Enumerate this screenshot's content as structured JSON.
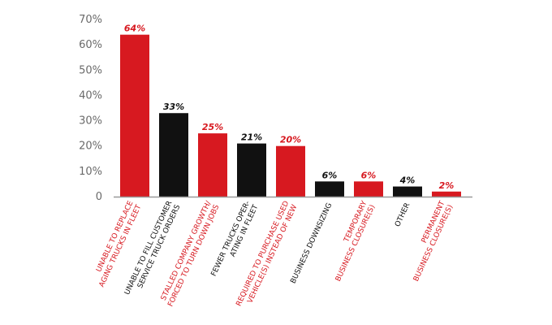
{
  "chart_data": {
    "type": "bar",
    "title": "",
    "xlabel": "",
    "ylabel": "",
    "ylim": [
      0,
      70
    ],
    "yticks": [
      "0",
      "10%",
      "20%",
      "30%",
      "40%",
      "50%",
      "60%",
      "70%"
    ],
    "grid": false,
    "legend": "none",
    "categories": [
      [
        "UNABLE TO REPLACE",
        "AGING TRUCKS IN FLEET"
      ],
      [
        "UNABLE TO FILL CUSTOMER",
        "SERVICE TRUCK ORDERS"
      ],
      [
        "STALLED COMPANY GROWTH/",
        "FORCED TO TURN DOWN JOBS"
      ],
      [
        "FEWER TRUCKS OPER-",
        "ATING IN FLEET"
      ],
      [
        "REQUIRED TO PURCHASE USED",
        "VEHICLE(S) INSTEAD OF NEW"
      ],
      [
        "BUSINESS DOWNSIZING"
      ],
      [
        "TEMPORARY",
        "BUSINESS CLOSURE(S)"
      ],
      [
        "OTHER"
      ],
      [
        "PERMANENT",
        "BUSINESS CLOSURE(S)"
      ]
    ],
    "values": [
      64,
      33,
      25,
      21,
      20,
      6,
      6,
      4,
      2
    ],
    "value_labels": [
      "64%",
      "33%",
      "25%",
      "21%",
      "20%",
      "6%",
      "6%",
      "4%",
      "2%"
    ],
    "bar_colors": [
      "#d71920",
      "#111111",
      "#d71920",
      "#111111",
      "#d71920",
      "#111111",
      "#d71920",
      "#111111",
      "#d71920"
    ],
    "axis_color": "#999999"
  }
}
